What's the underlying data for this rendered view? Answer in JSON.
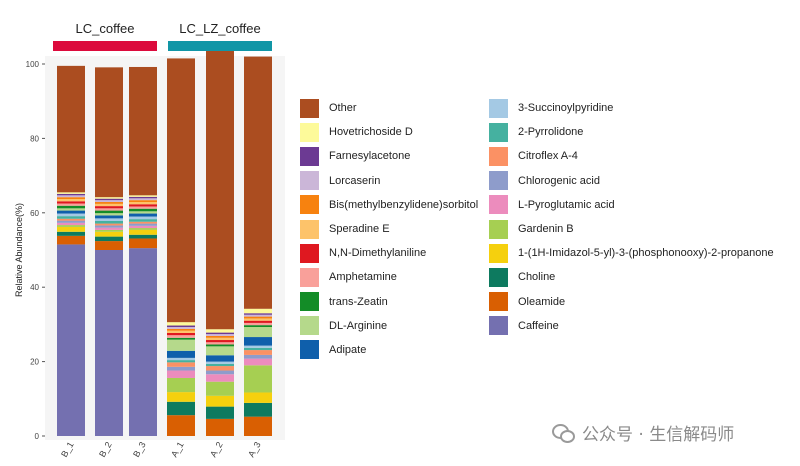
{
  "chart_data": {
    "type": "bar",
    "stacked": true,
    "ylabel": "Relative Abundance(%)",
    "ylim": [
      0,
      100
    ],
    "yticks": [
      "0",
      "20",
      "40",
      "60",
      "80",
      "100"
    ],
    "groups": [
      {
        "name": "LC_coffee",
        "color": "#dc0a3c",
        "samples": [
          "B_1",
          "B_2",
          "B_3"
        ]
      },
      {
        "name": "LC_LZ_coffee",
        "color": "#1196a6",
        "samples": [
          "A_1",
          "A_2",
          "A_3"
        ]
      }
    ],
    "categories": [
      "B_1",
      "B_2",
      "B_3",
      "A_1",
      "A_2",
      "A_3"
    ],
    "series": [
      {
        "name": "Caffeine",
        "color": "#7470b0",
        "values": [
          51.5,
          50.0,
          50.5,
          0,
          0,
          0
        ]
      },
      {
        "name": "Oleamide",
        "color": "#d95f02",
        "values": [
          2.3,
          2.4,
          2.6,
          5.6,
          4.6,
          5.2
        ]
      },
      {
        "name": "Choline",
        "color": "#0d7a5f",
        "values": [
          1.1,
          1.2,
          1.0,
          3.6,
          3.3,
          3.7
        ]
      },
      {
        "name": "1-(1H-Imidazol-5-yl)-3-(phosphonooxy)-2-propanone",
        "color": "#f5d00e",
        "values": [
          1.3,
          1.3,
          1.3,
          2.6,
          2.9,
          2.8
        ]
      },
      {
        "name": "Gardenin B",
        "color": "#a6cf52",
        "values": [
          0.5,
          0.5,
          0.5,
          3.8,
          3.8,
          7.3
        ]
      },
      {
        "name": "L-Pyroglutamic acid",
        "color": "#ec8cbd",
        "values": [
          0.6,
          0.6,
          0.6,
          2.0,
          2.0,
          1.8
        ]
      },
      {
        "name": "Chlorogenic acid",
        "color": "#8e9ccb",
        "values": [
          0.6,
          0.6,
          0.6,
          1.0,
          1.0,
          1.0
        ]
      },
      {
        "name": "Citroflex A-4",
        "color": "#fb9164",
        "values": [
          0.5,
          0.5,
          0.5,
          1.2,
          1.2,
          1.3
        ]
      },
      {
        "name": "2-Pyrrolidone",
        "color": "#45b1a0",
        "values": [
          0.7,
          0.7,
          0.7,
          0.6,
          0.6,
          0.6
        ]
      },
      {
        "name": "3-Succinoylpyridine",
        "color": "#a4c9e4",
        "values": [
          0.7,
          0.7,
          0.7,
          0.6,
          0.6,
          0.6
        ]
      },
      {
        "name": "Adipate",
        "color": "#0f5fab",
        "values": [
          0.8,
          0.8,
          0.8,
          1.9,
          1.7,
          2.3
        ]
      },
      {
        "name": "DL-Arginine",
        "color": "#b5d98b",
        "values": [
          0.6,
          0.6,
          0.6,
          3.0,
          2.4,
          2.7
        ]
      },
      {
        "name": "trans-Zeatin",
        "color": "#138c27",
        "values": [
          0.7,
          0.7,
          0.7,
          0.5,
          0.5,
          0.5
        ]
      },
      {
        "name": "Amphetamine",
        "color": "#f9a09a",
        "values": [
          0.6,
          0.6,
          0.6,
          0.7,
          0.6,
          0.6
        ]
      },
      {
        "name": "N,N-Dimethylaniline",
        "color": "#df1820",
        "values": [
          0.6,
          0.6,
          0.6,
          0.6,
          0.6,
          0.6
        ]
      },
      {
        "name": "Speradine E",
        "color": "#fdc36a",
        "values": [
          0.6,
          0.6,
          0.6,
          0.6,
          0.6,
          0.6
        ]
      },
      {
        "name": "Bis(methylbenzylidene)sorbitol",
        "color": "#f7820f",
        "values": [
          0.5,
          0.5,
          0.5,
          0.5,
          0.5,
          0.5
        ]
      },
      {
        "name": "Lorcaserin",
        "color": "#cbb6d8",
        "values": [
          0.5,
          0.5,
          0.5,
          0.5,
          0.5,
          0.5
        ]
      },
      {
        "name": "Farnesylacetone",
        "color": "#6c3a93",
        "values": [
          0.4,
          0.4,
          0.4,
          0.4,
          0.4,
          0.4
        ]
      },
      {
        "name": "Hovetrichoside D",
        "color": "#fdfa9a",
        "values": [
          0.4,
          0.4,
          0.4,
          0.9,
          0.9,
          1.2
        ]
      },
      {
        "name": "Other",
        "color": "#ab4d20",
        "values": [
          34.0,
          34.9,
          34.5,
          70.9,
          75.2,
          67.8
        ]
      }
    ],
    "legend": {
      "placement": "right",
      "col1": [
        "Other",
        "Hovetrichoside D",
        "Farnesylacetone",
        "Lorcaserin",
        "Bis(methylbenzylidene)sorbitol",
        "Speradine E",
        "N,N-Dimethylaniline",
        "Amphetamine",
        "trans-Zeatin",
        "DL-Arginine",
        "Adipate"
      ],
      "col2": [
        "3-Succinoylpyridine",
        "2-Pyrrolidone",
        "Citroflex A-4",
        "Chlorogenic acid",
        "L-Pyroglutamic acid",
        "Gardenin B",
        "1-(1H-Imidazol-5-yl)-3-(phosphonooxy)-2-propanone",
        "Choline",
        "Oleamide",
        "Caffeine"
      ]
    },
    "grid": false
  },
  "watermark": {
    "text": "公众号 · 生信解码师",
    "icon": "wechat-icon"
  }
}
